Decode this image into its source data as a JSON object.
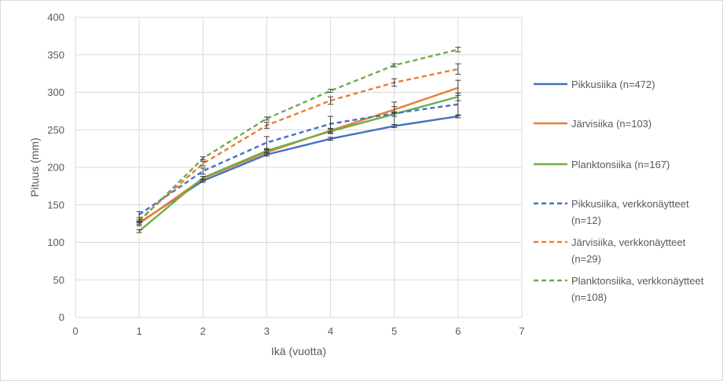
{
  "chart_data": {
    "type": "line",
    "title": "",
    "xlabel": "Ikä (vuotta)",
    "ylabel": "Pituus (mm)",
    "xlim": [
      0,
      7
    ],
    "ylim": [
      0,
      400
    ],
    "xticks": [
      0,
      1,
      2,
      3,
      4,
      5,
      6,
      7
    ],
    "yticks": [
      0,
      50,
      100,
      150,
      200,
      250,
      300,
      350,
      400
    ],
    "grid": true,
    "legend_position": "right",
    "x": [
      1,
      2,
      3,
      4,
      5,
      6
    ],
    "series": [
      {
        "name": "Pikkusiika (n=472)",
        "values": [
          126,
          182,
          217,
          238,
          255,
          268
        ],
        "errors": [
          2,
          2,
          2,
          2,
          2,
          2
        ],
        "color": "#4472c4",
        "dashed": false
      },
      {
        "name": "Järvisiika (n=103)",
        "values": [
          125,
          185,
          220,
          249,
          277,
          306
        ],
        "errors": [
          3,
          3,
          3,
          3,
          4,
          10
        ],
        "color": "#ed7d31",
        "dashed": false
      },
      {
        "name": "Planktonsiika (n=167)",
        "values": [
          115,
          186,
          222,
          248,
          271,
          294
        ],
        "errors": [
          2,
          2,
          2,
          3,
          3,
          5
        ],
        "color": "#70ad47",
        "dashed": false
      },
      {
        "name": "Pikkusiika, verkkonäytteet (n=12)",
        "values": [
          137,
          195,
          233,
          258,
          272,
          284
        ],
        "errors": [
          4,
          4,
          8,
          10,
          15,
          15
        ],
        "color": "#4472c4",
        "dashed": true
      },
      {
        "name": "Järvisiika, verkkonäytteet (n=29)",
        "values": [
          130,
          205,
          256,
          289,
          313,
          331
        ],
        "errors": [
          3,
          3,
          4,
          5,
          5,
          7
        ],
        "color": "#ed7d31",
        "dashed": true
      },
      {
        "name": "Planktonsiika, verkkonäytteet (n=108)",
        "values": [
          128,
          212,
          265,
          302,
          336,
          357
        ],
        "errors": [
          2,
          2,
          2,
          2,
          2,
          3
        ],
        "color": "#70ad47",
        "dashed": true
      }
    ]
  },
  "legend": [
    {
      "lines": [
        "Pikkusiika (n=472)"
      ]
    },
    {
      "lines": [
        "Järvisiika (n=103)"
      ]
    },
    {
      "lines": [
        "Planktonsiika (n=167)"
      ]
    },
    {
      "lines": [
        "Pikkusiika, verkkonäytteet",
        "(n=12)"
      ]
    },
    {
      "lines": [
        "Järvisiika, verkkonäytteet",
        "(n=29)"
      ]
    },
    {
      "lines": [
        "Planktonsiika, verkkonäytteet",
        "(n=108)"
      ]
    }
  ],
  "colors": {
    "grid": "#d9d9d9",
    "text": "#595959",
    "errorbar": "#404040"
  }
}
